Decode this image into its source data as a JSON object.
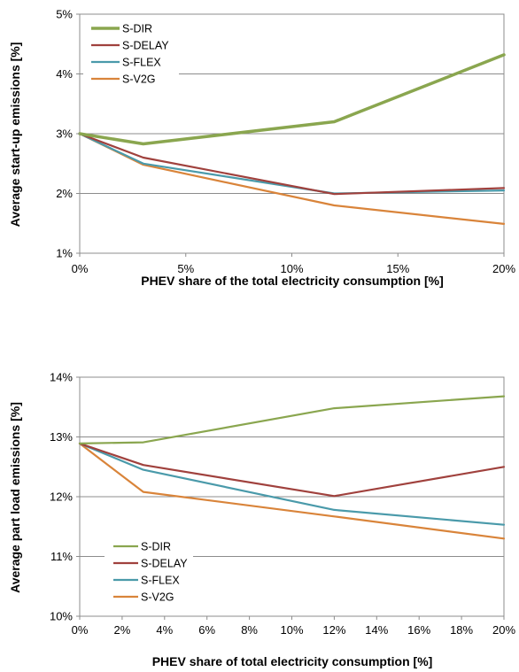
{
  "chart_data": [
    {
      "type": "line",
      "x": [
        0,
        3,
        12,
        20
      ],
      "xticks": [
        "0%",
        "5%",
        "10%",
        "15%",
        "20%"
      ],
      "xtick_values": [
        0,
        5,
        10,
        15,
        20
      ],
      "xlim": [
        0,
        20
      ],
      "ylim": [
        1,
        5
      ],
      "yticks": [
        "1%",
        "2%",
        "3%",
        "4%",
        "5%"
      ],
      "ytick_values": [
        1,
        2,
        3,
        4,
        5
      ],
      "xlabel": "PHEV share of the total electricity consumption [%]",
      "ylabel": "Average start-up emissions [%]",
      "grid": "horizontal",
      "legend_position": "top-left",
      "series": [
        {
          "name": "S-DIR",
          "values": [
            3.0,
            2.83,
            3.2,
            4.32
          ],
          "color": "#8AA64F",
          "width": 3.5
        },
        {
          "name": "S-DELAY",
          "values": [
            3.0,
            2.6,
            1.99,
            2.09
          ],
          "color": "#A0413D",
          "width": 2.2
        },
        {
          "name": "S-FLEX",
          "values": [
            3.0,
            2.5,
            2.0,
            2.05
          ],
          "color": "#4A9AAA",
          "width": 2.2
        },
        {
          "name": "S-V2G",
          "values": [
            3.0,
            2.48,
            1.8,
            1.49
          ],
          "color": "#D9843A",
          "width": 2.2
        }
      ]
    },
    {
      "type": "line",
      "x": [
        0,
        3,
        12,
        20
      ],
      "xticks": [
        "0%",
        "2%",
        "4%",
        "6%",
        "8%",
        "10%",
        "12%",
        "14%",
        "16%",
        "18%",
        "20%"
      ],
      "xtick_values": [
        0,
        2,
        4,
        6,
        8,
        10,
        12,
        14,
        16,
        18,
        20
      ],
      "xlim": [
        0,
        20
      ],
      "ylim": [
        10,
        14
      ],
      "yticks": [
        "10%",
        "11%",
        "12%",
        "13%",
        "14%"
      ],
      "ytick_values": [
        10,
        11,
        12,
        13,
        14
      ],
      "xlabel": "PHEV share of total electricity consumption [%]",
      "ylabel": "Average part load emissions  [%]",
      "grid": "horizontal",
      "legend_position": "bottom-left",
      "series": [
        {
          "name": "S-DIR",
          "values": [
            12.89,
            12.91,
            13.48,
            13.68
          ],
          "color": "#8AA64F",
          "width": 2.2
        },
        {
          "name": "S-DELAY",
          "values": [
            12.89,
            12.53,
            12.01,
            12.5
          ],
          "color": "#A0413D",
          "width": 2.2
        },
        {
          "name": "S-FLEX",
          "values": [
            12.89,
            12.45,
            11.78,
            11.53
          ],
          "color": "#4A9AAA",
          "width": 2.2
        },
        {
          "name": "S-V2G",
          "values": [
            12.89,
            12.08,
            11.67,
            11.3
          ],
          "color": "#D9843A",
          "width": 2.2
        }
      ]
    }
  ]
}
